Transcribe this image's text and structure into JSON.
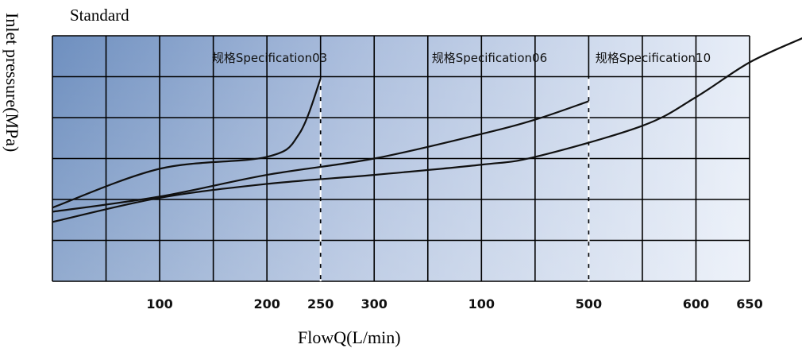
{
  "chart_data": {
    "type": "line",
    "title": "Standard",
    "xlabel": "FlowQ(L/min)",
    "ylabel": "Inlet pressure(MPa)",
    "x_tick_labels": [
      "100",
      "200",
      "250",
      "300",
      "100",
      "500",
      "600",
      "650"
    ],
    "grid": true,
    "legend": "none",
    "annotations": [
      {
        "text": "规格Specification03",
        "x_index": 4.05
      },
      {
        "text": "规格Specification06",
        "x_index": 8.15
      },
      {
        "text": "规格Specification10",
        "x_index": 11.2
      }
    ],
    "spec_limits": [
      {
        "name": "规格Specification03",
        "x_index": 5
      },
      {
        "name": "规格Specification06",
        "x_index": 10
      }
    ],
    "series": [
      {
        "name": "规格Specification03",
        "points": [
          [
            0,
            1.8
          ],
          [
            2,
            2.75
          ],
          [
            4,
            3.04
          ],
          [
            4.6,
            3.6
          ],
          [
            5,
            4.95
          ]
        ]
      },
      {
        "name": "规格Specification06",
        "points": [
          [
            0,
            1.7
          ],
          [
            2,
            2.07
          ],
          [
            4,
            2.6
          ],
          [
            6,
            3.0
          ],
          [
            8,
            3.6
          ],
          [
            9,
            3.95
          ],
          [
            10,
            4.4
          ]
        ]
      },
      {
        "name": "规格Specification10",
        "points": [
          [
            0,
            1.45
          ],
          [
            2,
            2.04
          ],
          [
            4,
            2.38
          ],
          [
            6,
            2.6
          ],
          [
            8,
            2.85
          ],
          [
            9,
            3.04
          ],
          [
            11,
            3.8
          ],
          [
            12,
            4.5
          ],
          [
            13,
            5.35
          ],
          [
            14,
            5.95
          ]
        ]
      }
    ],
    "ylim": [
      0,
      6
    ],
    "colors": {
      "background_left": "#6e8fbf",
      "background_right": "#e8eef8",
      "grid": "#000000",
      "line": "#111111",
      "spec_dash": "#ffffff"
    }
  }
}
